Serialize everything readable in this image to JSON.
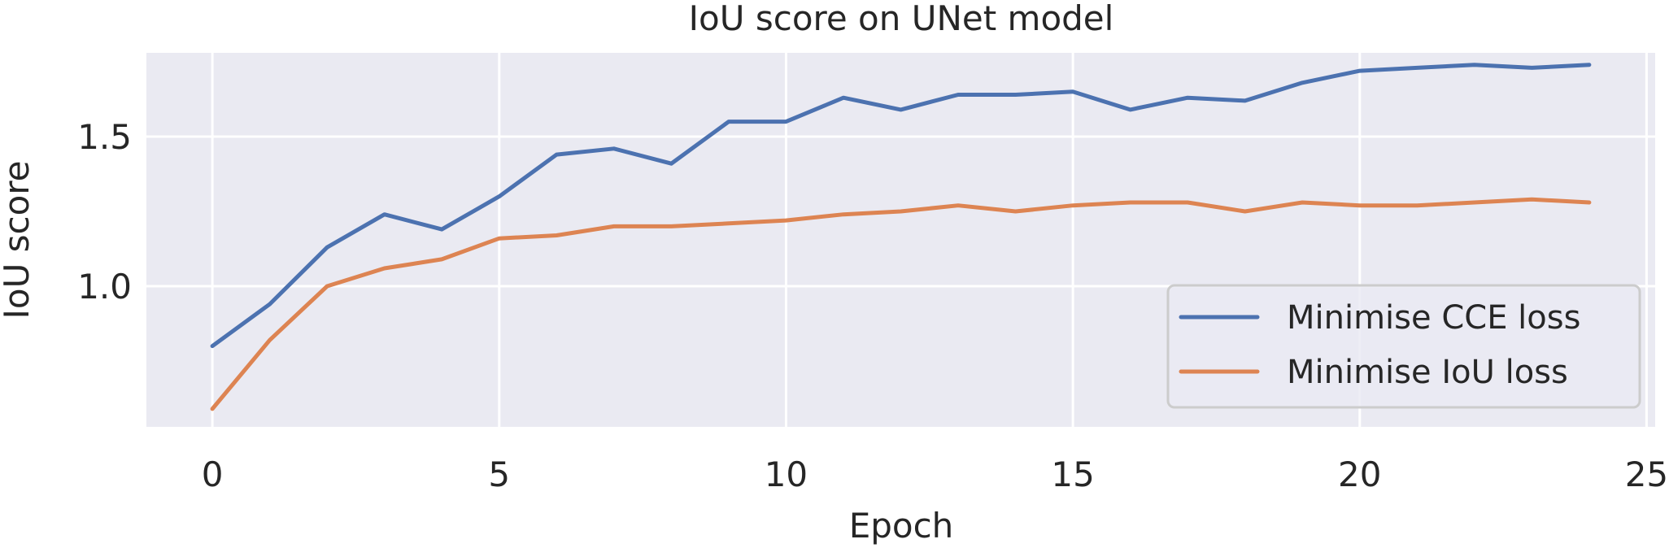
{
  "chart_data": {
    "type": "line",
    "title": "IoU score on UNet model",
    "xlabel": "Epoch",
    "ylabel": "IoU score",
    "xlim": [
      -1.15,
      25.15
    ],
    "ylim": [
      0.53,
      1.78
    ],
    "xticks": [
      0,
      5,
      10,
      15,
      20,
      25
    ],
    "xtick_labels": [
      "0",
      "5",
      "10",
      "15",
      "20",
      "25"
    ],
    "yticks": [
      1.0,
      1.5
    ],
    "ytick_labels": [
      "1.0",
      "1.5"
    ],
    "grid": true,
    "legend_position": "lower-right",
    "x": [
      0,
      1,
      2,
      3,
      4,
      5,
      6,
      7,
      8,
      9,
      10,
      11,
      12,
      13,
      14,
      15,
      16,
      17,
      18,
      19,
      20,
      21,
      22,
      23,
      24
    ],
    "series": [
      {
        "name": "Minimise CCE loss",
        "color": "#4c72b0",
        "values": [
          0.8,
          0.94,
          1.13,
          1.24,
          1.19,
          1.3,
          1.44,
          1.46,
          1.41,
          1.55,
          1.55,
          1.63,
          1.59,
          1.64,
          1.64,
          1.65,
          1.59,
          1.63,
          1.62,
          1.68,
          1.72,
          1.73,
          1.74,
          1.73,
          1.74
        ]
      },
      {
        "name": "Minimise IoU loss",
        "color": "#dd8452",
        "values": [
          0.59,
          0.82,
          1.0,
          1.06,
          1.09,
          1.16,
          1.17,
          1.2,
          1.2,
          1.21,
          1.22,
          1.24,
          1.25,
          1.27,
          1.25,
          1.27,
          1.28,
          1.28,
          1.25,
          1.28,
          1.27,
          1.27,
          1.28,
          1.29,
          1.28
        ]
      }
    ],
    "colors": {
      "plot_background": "#eaeaf2",
      "grid": "#ffffff",
      "text": "#262626",
      "legend_border": "#cccccc"
    }
  }
}
